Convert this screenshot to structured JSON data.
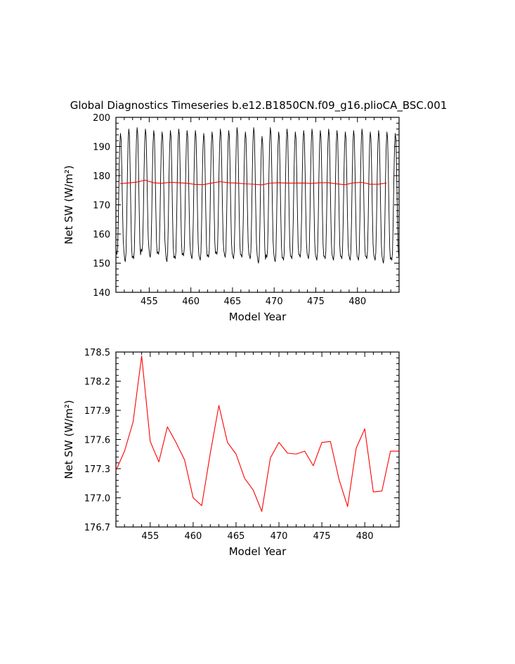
{
  "title": "Global Diagnostics Timeseries b.e12.B1850CN.f09_g16.plioCA_BSC.001",
  "colors": {
    "monthly": "#000000",
    "annual": "#ff0000",
    "frame": "#000000"
  },
  "chart_data": [
    {
      "type": "line",
      "xlabel": "Model Year",
      "ylabel": "Net SW (W/m²)",
      "xlim": [
        451,
        485
      ],
      "ylim": [
        140,
        200
      ],
      "xticks": [
        455,
        460,
        465,
        470,
        475,
        480
      ],
      "yticks": [
        140,
        150,
        160,
        170,
        180,
        190,
        200
      ],
      "series": [
        {
          "kind": "monthly",
          "x_start": 451,
          "x_end": 485,
          "months_per_year": 12,
          "annual_min": [
            153.0,
            150.5,
            151.5,
            154.0,
            152.0,
            153.0,
            150.5,
            151.5,
            152.5,
            151.5,
            151.0,
            152.0,
            153.0,
            152.0,
            151.5,
            152.0,
            151.5,
            150.0,
            152.0,
            150.5,
            151.0,
            151.5,
            152.0,
            151.5,
            151.0,
            151.5,
            151.0,
            151.5,
            151.0,
            151.0,
            151.5,
            151.0,
            150.0,
            151.0
          ],
          "annual_max": [
            194.5,
            196.0,
            196.5,
            196.0,
            195.5,
            195.0,
            195.5,
            196.0,
            195.5,
            195.5,
            194.5,
            195.0,
            196.0,
            195.5,
            196.5,
            195.0,
            196.5,
            193.5,
            196.5,
            195.0,
            196.0,
            195.0,
            195.5,
            196.0,
            195.5,
            196.0,
            195.5,
            195.0,
            195.5,
            196.0,
            195.0,
            195.5,
            195.0,
            194.5
          ]
        },
        {
          "kind": "annual",
          "x": [
            451.5,
            452.5,
            453.5,
            454.5,
            455.5,
            456.5,
            457.5,
            458.5,
            459.5,
            460.5,
            461.5,
            462.5,
            463.5,
            464.5,
            465.5,
            466.5,
            467.5,
            468.5,
            469.5,
            470.5,
            471.5,
            472.5,
            473.5,
            474.5,
            475.5,
            476.5,
            477.5,
            478.5,
            479.5,
            480.5,
            481.5,
            482.5,
            483.5
          ],
          "y": [
            177.28,
            177.48,
            177.78,
            178.46,
            177.58,
            177.37,
            177.73,
            177.57,
            177.39,
            177.0,
            176.92,
            177.46,
            177.95,
            177.57,
            177.45,
            177.2,
            177.08,
            176.86,
            177.41,
            177.57,
            177.46,
            177.45,
            177.48,
            177.33,
            177.57,
            177.58,
            177.19,
            176.91,
            177.51,
            177.71,
            177.06,
            177.07,
            177.48
          ]
        }
      ]
    },
    {
      "type": "line",
      "xlabel": "Model Year",
      "ylabel": "Net SW (W/m²)",
      "xlim": [
        451,
        484
      ],
      "ylim": [
        176.7,
        178.5
      ],
      "xticks": [
        455,
        460,
        465,
        470,
        475,
        480
      ],
      "yticks": [
        176.7,
        177.0,
        177.3,
        177.6,
        177.9,
        178.2,
        178.5
      ],
      "tick_labels_y": [
        "176.7",
        "177.0",
        "177.3",
        "177.6",
        "177.9",
        "178.2",
        "178.5"
      ],
      "series": [
        {
          "kind": "annual",
          "x": [
            451.0,
            452.0,
            453.0,
            454.0,
            455.0,
            456.0,
            457.0,
            458.0,
            459.0,
            460.0,
            461.0,
            462.0,
            463.0,
            464.0,
            465.0,
            466.0,
            467.0,
            468.0,
            469.0,
            470.0,
            471.0,
            472.0,
            473.0,
            474.0,
            475.0,
            476.0,
            477.0,
            478.0,
            479.0,
            480.0,
            481.0,
            482.0,
            483.0,
            484.0
          ],
          "y": [
            177.28,
            177.48,
            177.78,
            178.46,
            177.58,
            177.37,
            177.73,
            177.57,
            177.39,
            177.0,
            176.92,
            177.46,
            177.95,
            177.57,
            177.45,
            177.2,
            177.08,
            176.86,
            177.41,
            177.57,
            177.46,
            177.45,
            177.48,
            177.33,
            177.57,
            177.58,
            177.19,
            176.91,
            177.51,
            177.71,
            177.06,
            177.07,
            177.48,
            177.48
          ]
        }
      ]
    }
  ]
}
